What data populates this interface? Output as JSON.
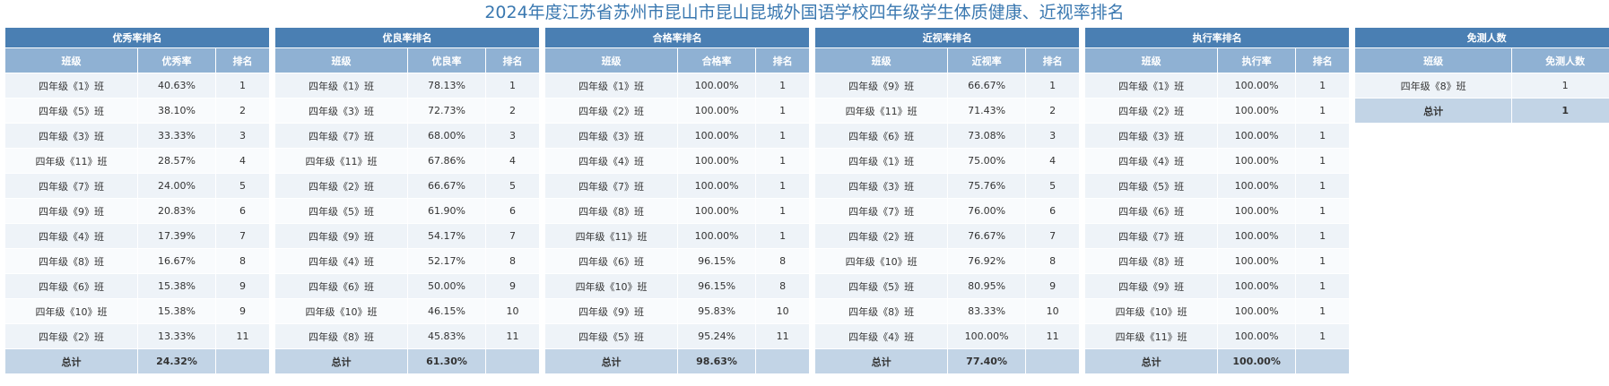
{
  "title": "2024年度江苏省苏州市昆山市昆山昆城外国语学校四年级学生体质健康、近视率排名",
  "headers": {
    "class": "班级",
    "rank": "排名",
    "total": "总计"
  },
  "panels": [
    {
      "caption": "优秀率排名",
      "rate_header": "优秀率",
      "rows": [
        {
          "class": "四年级《1》班",
          "rate": "40.63%",
          "rank": "1"
        },
        {
          "class": "四年级《5》班",
          "rate": "38.10%",
          "rank": "2"
        },
        {
          "class": "四年级《3》班",
          "rate": "33.33%",
          "rank": "3"
        },
        {
          "class": "四年级《11》班",
          "rate": "28.57%",
          "rank": "4"
        },
        {
          "class": "四年级《7》班",
          "rate": "24.00%",
          "rank": "5"
        },
        {
          "class": "四年级《9》班",
          "rate": "20.83%",
          "rank": "6"
        },
        {
          "class": "四年级《4》班",
          "rate": "17.39%",
          "rank": "7"
        },
        {
          "class": "四年级《8》班",
          "rate": "16.67%",
          "rank": "8"
        },
        {
          "class": "四年级《6》班",
          "rate": "15.38%",
          "rank": "9"
        },
        {
          "class": "四年级《10》班",
          "rate": "15.38%",
          "rank": "9"
        },
        {
          "class": "四年级《2》班",
          "rate": "13.33%",
          "rank": "11"
        }
      ],
      "total": "24.32%"
    },
    {
      "caption": "优良率排名",
      "rate_header": "优良率",
      "rows": [
        {
          "class": "四年级《1》班",
          "rate": "78.13%",
          "rank": "1"
        },
        {
          "class": "四年级《3》班",
          "rate": "72.73%",
          "rank": "2"
        },
        {
          "class": "四年级《7》班",
          "rate": "68.00%",
          "rank": "3"
        },
        {
          "class": "四年级《11》班",
          "rate": "67.86%",
          "rank": "4"
        },
        {
          "class": "四年级《2》班",
          "rate": "66.67%",
          "rank": "5"
        },
        {
          "class": "四年级《5》班",
          "rate": "61.90%",
          "rank": "6"
        },
        {
          "class": "四年级《9》班",
          "rate": "54.17%",
          "rank": "7"
        },
        {
          "class": "四年级《4》班",
          "rate": "52.17%",
          "rank": "8"
        },
        {
          "class": "四年级《6》班",
          "rate": "50.00%",
          "rank": "9"
        },
        {
          "class": "四年级《10》班",
          "rate": "46.15%",
          "rank": "10"
        },
        {
          "class": "四年级《8》班",
          "rate": "45.83%",
          "rank": "11"
        }
      ],
      "total": "61.30%"
    },
    {
      "caption": "合格率排名",
      "rate_header": "合格率",
      "rows": [
        {
          "class": "四年级《1》班",
          "rate": "100.00%",
          "rank": "1"
        },
        {
          "class": "四年级《2》班",
          "rate": "100.00%",
          "rank": "1"
        },
        {
          "class": "四年级《3》班",
          "rate": "100.00%",
          "rank": "1"
        },
        {
          "class": "四年级《4》班",
          "rate": "100.00%",
          "rank": "1"
        },
        {
          "class": "四年级《7》班",
          "rate": "100.00%",
          "rank": "1"
        },
        {
          "class": "四年级《8》班",
          "rate": "100.00%",
          "rank": "1"
        },
        {
          "class": "四年级《11》班",
          "rate": "100.00%",
          "rank": "1"
        },
        {
          "class": "四年级《6》班",
          "rate": "96.15%",
          "rank": "8"
        },
        {
          "class": "四年级《10》班",
          "rate": "96.15%",
          "rank": "8"
        },
        {
          "class": "四年级《9》班",
          "rate": "95.83%",
          "rank": "10"
        },
        {
          "class": "四年级《5》班",
          "rate": "95.24%",
          "rank": "11"
        }
      ],
      "total": "98.63%"
    },
    {
      "caption": "近视率排名",
      "rate_header": "近视率",
      "rows": [
        {
          "class": "四年级《9》班",
          "rate": "66.67%",
          "rank": "1"
        },
        {
          "class": "四年级《11》班",
          "rate": "71.43%",
          "rank": "2"
        },
        {
          "class": "四年级《6》班",
          "rate": "73.08%",
          "rank": "3"
        },
        {
          "class": "四年级《1》班",
          "rate": "75.00%",
          "rank": "4"
        },
        {
          "class": "四年级《3》班",
          "rate": "75.76%",
          "rank": "5"
        },
        {
          "class": "四年级《7》班",
          "rate": "76.00%",
          "rank": "6"
        },
        {
          "class": "四年级《2》班",
          "rate": "76.67%",
          "rank": "7"
        },
        {
          "class": "四年级《10》班",
          "rate": "76.92%",
          "rank": "8"
        },
        {
          "class": "四年级《5》班",
          "rate": "80.95%",
          "rank": "9"
        },
        {
          "class": "四年级《8》班",
          "rate": "83.33%",
          "rank": "10"
        },
        {
          "class": "四年级《4》班",
          "rate": "100.00%",
          "rank": "11"
        }
      ],
      "total": "77.40%"
    },
    {
      "caption": "执行率排名",
      "rate_header": "执行率",
      "rows": [
        {
          "class": "四年级《1》班",
          "rate": "100.00%",
          "rank": "1"
        },
        {
          "class": "四年级《2》班",
          "rate": "100.00%",
          "rank": "1"
        },
        {
          "class": "四年级《3》班",
          "rate": "100.00%",
          "rank": "1"
        },
        {
          "class": "四年级《4》班",
          "rate": "100.00%",
          "rank": "1"
        },
        {
          "class": "四年级《5》班",
          "rate": "100.00%",
          "rank": "1"
        },
        {
          "class": "四年级《6》班",
          "rate": "100.00%",
          "rank": "1"
        },
        {
          "class": "四年级《7》班",
          "rate": "100.00%",
          "rank": "1"
        },
        {
          "class": "四年级《8》班",
          "rate": "100.00%",
          "rank": "1"
        },
        {
          "class": "四年级《9》班",
          "rate": "100.00%",
          "rank": "1"
        },
        {
          "class": "四年级《10》班",
          "rate": "100.00%",
          "rank": "1"
        },
        {
          "class": "四年级《11》班",
          "rate": "100.00%",
          "rank": "1"
        }
      ],
      "total": "100.00%"
    }
  ],
  "exempt": {
    "caption": "免测人数",
    "count_header": "免测人数",
    "rows": [
      {
        "class": "四年级《8》班",
        "count": "1"
      }
    ],
    "total": "1"
  }
}
